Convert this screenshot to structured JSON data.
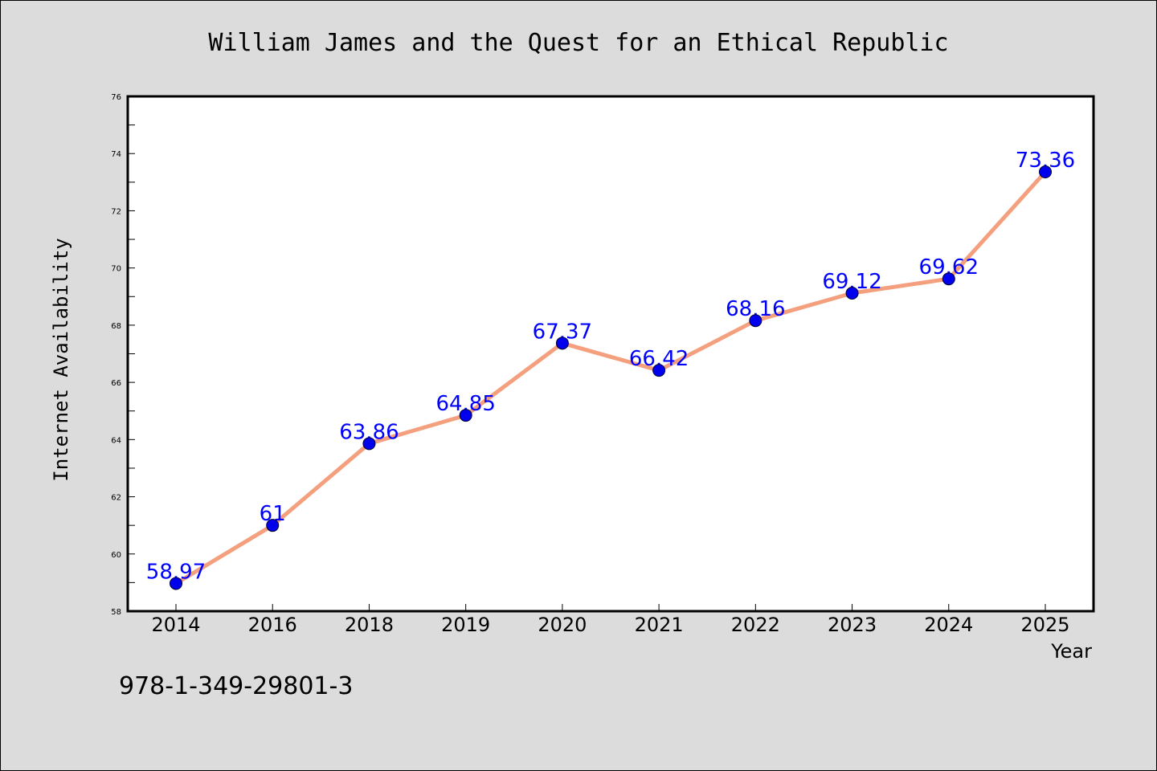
{
  "chart_data": {
    "type": "line",
    "title": "William James and the Quest for an Ethical Republic",
    "xlabel": "Year",
    "ylabel": "Internet Availability",
    "categories": [
      "2014",
      "2016",
      "2018",
      "2019",
      "2020",
      "2021",
      "2022",
      "2023",
      "2024",
      "2025"
    ],
    "values": [
      58.97,
      61,
      63.86,
      64.85,
      67.37,
      66.42,
      68.16,
      69.12,
      69.62,
      73.36
    ],
    "data_labels": [
      "58.97",
      "61",
      "63.86",
      "64.85",
      "67.37",
      "66.42",
      "68.16",
      "69.12",
      "69.62",
      "73.36"
    ],
    "ylim": [
      58,
      76
    ],
    "yticks": [
      "58",
      "60",
      "62",
      "64",
      "66",
      "68",
      "70",
      "72",
      "74",
      "76"
    ],
    "grid": false,
    "legend": "none",
    "colors": {
      "line": "#f4a07e",
      "marker": "#0000ee",
      "data_label": "#0000ff",
      "background": "#dcdcdc",
      "plot_background": "#ffffff"
    }
  },
  "annotation": "978-1-349-29801-3"
}
